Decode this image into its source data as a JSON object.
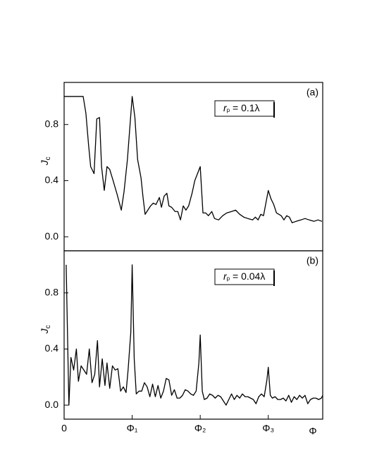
{
  "chart_data": [
    {
      "type": "line",
      "panel": "(a)",
      "ylabel": {
        "main": "J",
        "sub": "c"
      },
      "annotation": {
        "main": "r",
        "sub": "p",
        "rest": " = 0.1λ"
      },
      "color": "#000000",
      "xlim": [
        0,
        3.8
      ],
      "ylim": [
        -0.1,
        1.1
      ],
      "yticks": [
        {
          "value": 0,
          "label": "0.0"
        },
        0.4,
        0.8
      ],
      "x": [
        0,
        0.28,
        0.32,
        0.36,
        0.39,
        0.44,
        0.48,
        0.52,
        0.55,
        0.59,
        0.63,
        0.67,
        0.72,
        0.78,
        0.84,
        0.88,
        0.93,
        1.0,
        1.04,
        1.08,
        1.13,
        1.16,
        1.19,
        1.23,
        1.27,
        1.31,
        1.35,
        1.4,
        1.43,
        1.47,
        1.51,
        1.54,
        1.58,
        1.63,
        1.67,
        1.71,
        1.75,
        1.79,
        1.83,
        1.88,
        1.92,
        1.96,
        2.0,
        2.04,
        2.08,
        2.12,
        2.17,
        2.21,
        2.27,
        2.33,
        2.39,
        2.46,
        2.52,
        2.58,
        2.64,
        2.7,
        2.77,
        2.81,
        2.85,
        2.89,
        2.93,
        3.0,
        3.04,
        3.08,
        3.12,
        3.19,
        3.23,
        3.27,
        3.31,
        3.35,
        3.41,
        3.48,
        3.54,
        3.6,
        3.67,
        3.73,
        3.79
      ],
      "values": [
        1.0,
        1.0,
        0.88,
        0.65,
        0.5,
        0.45,
        0.84,
        0.85,
        0.5,
        0.33,
        0.5,
        0.48,
        0.4,
        0.3,
        0.19,
        0.32,
        0.55,
        1.0,
        0.85,
        0.55,
        0.42,
        0.28,
        0.16,
        0.19,
        0.22,
        0.24,
        0.23,
        0.28,
        0.21,
        0.29,
        0.31,
        0.22,
        0.21,
        0.18,
        0.18,
        0.12,
        0.22,
        0.19,
        0.22,
        0.31,
        0.4,
        0.45,
        0.5,
        0.17,
        0.17,
        0.15,
        0.18,
        0.13,
        0.12,
        0.15,
        0.17,
        0.18,
        0.19,
        0.16,
        0.14,
        0.13,
        0.12,
        0.14,
        0.12,
        0.16,
        0.15,
        0.33,
        0.27,
        0.23,
        0.17,
        0.15,
        0.12,
        0.15,
        0.14,
        0.1,
        0.11,
        0.12,
        0.13,
        0.12,
        0.11,
        0.12,
        0.11
      ]
    },
    {
      "type": "line",
      "panel": "(b)",
      "ylabel": {
        "main": "J",
        "sub": "c"
      },
      "annotation": {
        "main": "r",
        "sub": "p",
        "rest": " = 0.04λ"
      },
      "color": "#000000",
      "xlim": [
        0,
        3.8
      ],
      "ylim": [
        -0.1,
        1.1
      ],
      "yticks": [
        {
          "value": 0,
          "label": "0.0"
        },
        0.4,
        0.8
      ],
      "xticks": [
        0,
        {
          "value": 1,
          "label": "Φ₁"
        },
        {
          "value": 2,
          "label": "Φ₂"
        },
        {
          "value": 3,
          "label": "Φ₃"
        }
      ],
      "xlabel": "Φ",
      "x": [
        0.03,
        0.07,
        0.1,
        0.14,
        0.18,
        0.21,
        0.25,
        0.29,
        0.33,
        0.37,
        0.41,
        0.45,
        0.49,
        0.52,
        0.56,
        0.6,
        0.63,
        0.67,
        0.71,
        0.75,
        0.79,
        0.83,
        0.87,
        0.91,
        0.94,
        0.98,
        1.0,
        1.03,
        1.06,
        1.1,
        1.14,
        1.18,
        1.22,
        1.26,
        1.3,
        1.34,
        1.38,
        1.42,
        1.46,
        1.5,
        1.54,
        1.58,
        1.62,
        1.66,
        1.7,
        1.74,
        1.78,
        1.82,
        1.86,
        1.9,
        1.94,
        1.98,
        2.0,
        2.03,
        2.06,
        2.1,
        2.14,
        2.18,
        2.22,
        2.26,
        2.3,
        2.34,
        2.38,
        2.42,
        2.46,
        2.5,
        2.54,
        2.58,
        2.62,
        2.66,
        2.7,
        2.74,
        2.78,
        2.82,
        2.86,
        2.9,
        2.94,
        2.98,
        3.0,
        3.03,
        3.06,
        3.1,
        3.14,
        3.18,
        3.22,
        3.26,
        3.3,
        3.34,
        3.38,
        3.42,
        3.46,
        3.5,
        3.54,
        3.58,
        3.62,
        3.66,
        3.7,
        3.74,
        3.78,
        3.8
      ],
      "values": [
        1.0,
        0.0,
        0.34,
        0.25,
        0.4,
        0.17,
        0.28,
        0.25,
        0.22,
        0.4,
        0.16,
        0.22,
        0.46,
        0.13,
        0.33,
        0.14,
        0.3,
        0.12,
        0.28,
        0.25,
        0.26,
        0.1,
        0.13,
        0.09,
        0.25,
        0.52,
        1.0,
        0.33,
        0.08,
        0.1,
        0.1,
        0.16,
        0.13,
        0.06,
        0.15,
        0.06,
        0.14,
        0.05,
        0.1,
        0.19,
        0.18,
        0.07,
        0.11,
        0.05,
        0.05,
        0.07,
        0.11,
        0.1,
        0.08,
        0.07,
        0.1,
        0.3,
        0.5,
        0.1,
        0.04,
        0.05,
        0.08,
        0.07,
        0.05,
        0.07,
        0.06,
        0.03,
        0.0,
        0.04,
        0.08,
        0.04,
        0.07,
        0.05,
        0.08,
        0.06,
        0.06,
        0.05,
        0.04,
        0.01,
        0.06,
        0.08,
        0.06,
        0.18,
        0.27,
        0.07,
        0.05,
        0.06,
        0.04,
        0.04,
        0.05,
        0.03,
        0.07,
        0.02,
        0.06,
        0.04,
        0.07,
        0.05,
        0.07,
        0.01,
        0.04,
        0.05,
        0.05,
        0.04,
        0.05,
        0.07
      ]
    }
  ]
}
